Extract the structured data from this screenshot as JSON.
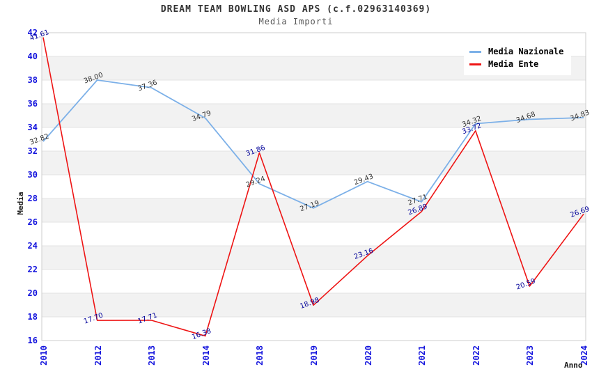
{
  "chart_data": {
    "type": "line",
    "title": "DREAM TEAM BOWLING ASD APS (c.f.02963140369)",
    "subtitle": "Media Importi",
    "xlabel": "Anno",
    "ylabel": "Media",
    "categories": [
      "2010",
      "2012",
      "2013",
      "2014",
      "2018",
      "2019",
      "2020",
      "2021",
      "2022",
      "2023",
      "2024"
    ],
    "series": [
      {
        "name": "Media Nazionale",
        "color": "#7cb0e8",
        "label_color": "#333333",
        "values": [
          32.82,
          38.0,
          37.36,
          34.79,
          29.24,
          27.19,
          29.43,
          27.71,
          34.32,
          34.68,
          34.83
        ]
      },
      {
        "name": "Media Ente",
        "color": "#ee1414",
        "label_color": "#000099",
        "values": [
          41.61,
          17.7,
          17.71,
          16.38,
          31.86,
          18.98,
          23.16,
          26.89,
          33.72,
          20.59,
          26.69
        ]
      }
    ],
    "ylim": [
      16,
      42
    ],
    "y_ticks": [
      16,
      18,
      20,
      22,
      24,
      26,
      28,
      30,
      32,
      34,
      36,
      38,
      40,
      42
    ],
    "value_decimals": 2,
    "grid": "horizontal-bands",
    "legend_position": "top-right",
    "colors": {
      "axis_tick": "#1414dd",
      "band": "#f2f2f2",
      "gridline": "#e3e3e3",
      "plot_border": "#cccccc",
      "title": "#333333",
      "subtitle": "#555555"
    }
  }
}
